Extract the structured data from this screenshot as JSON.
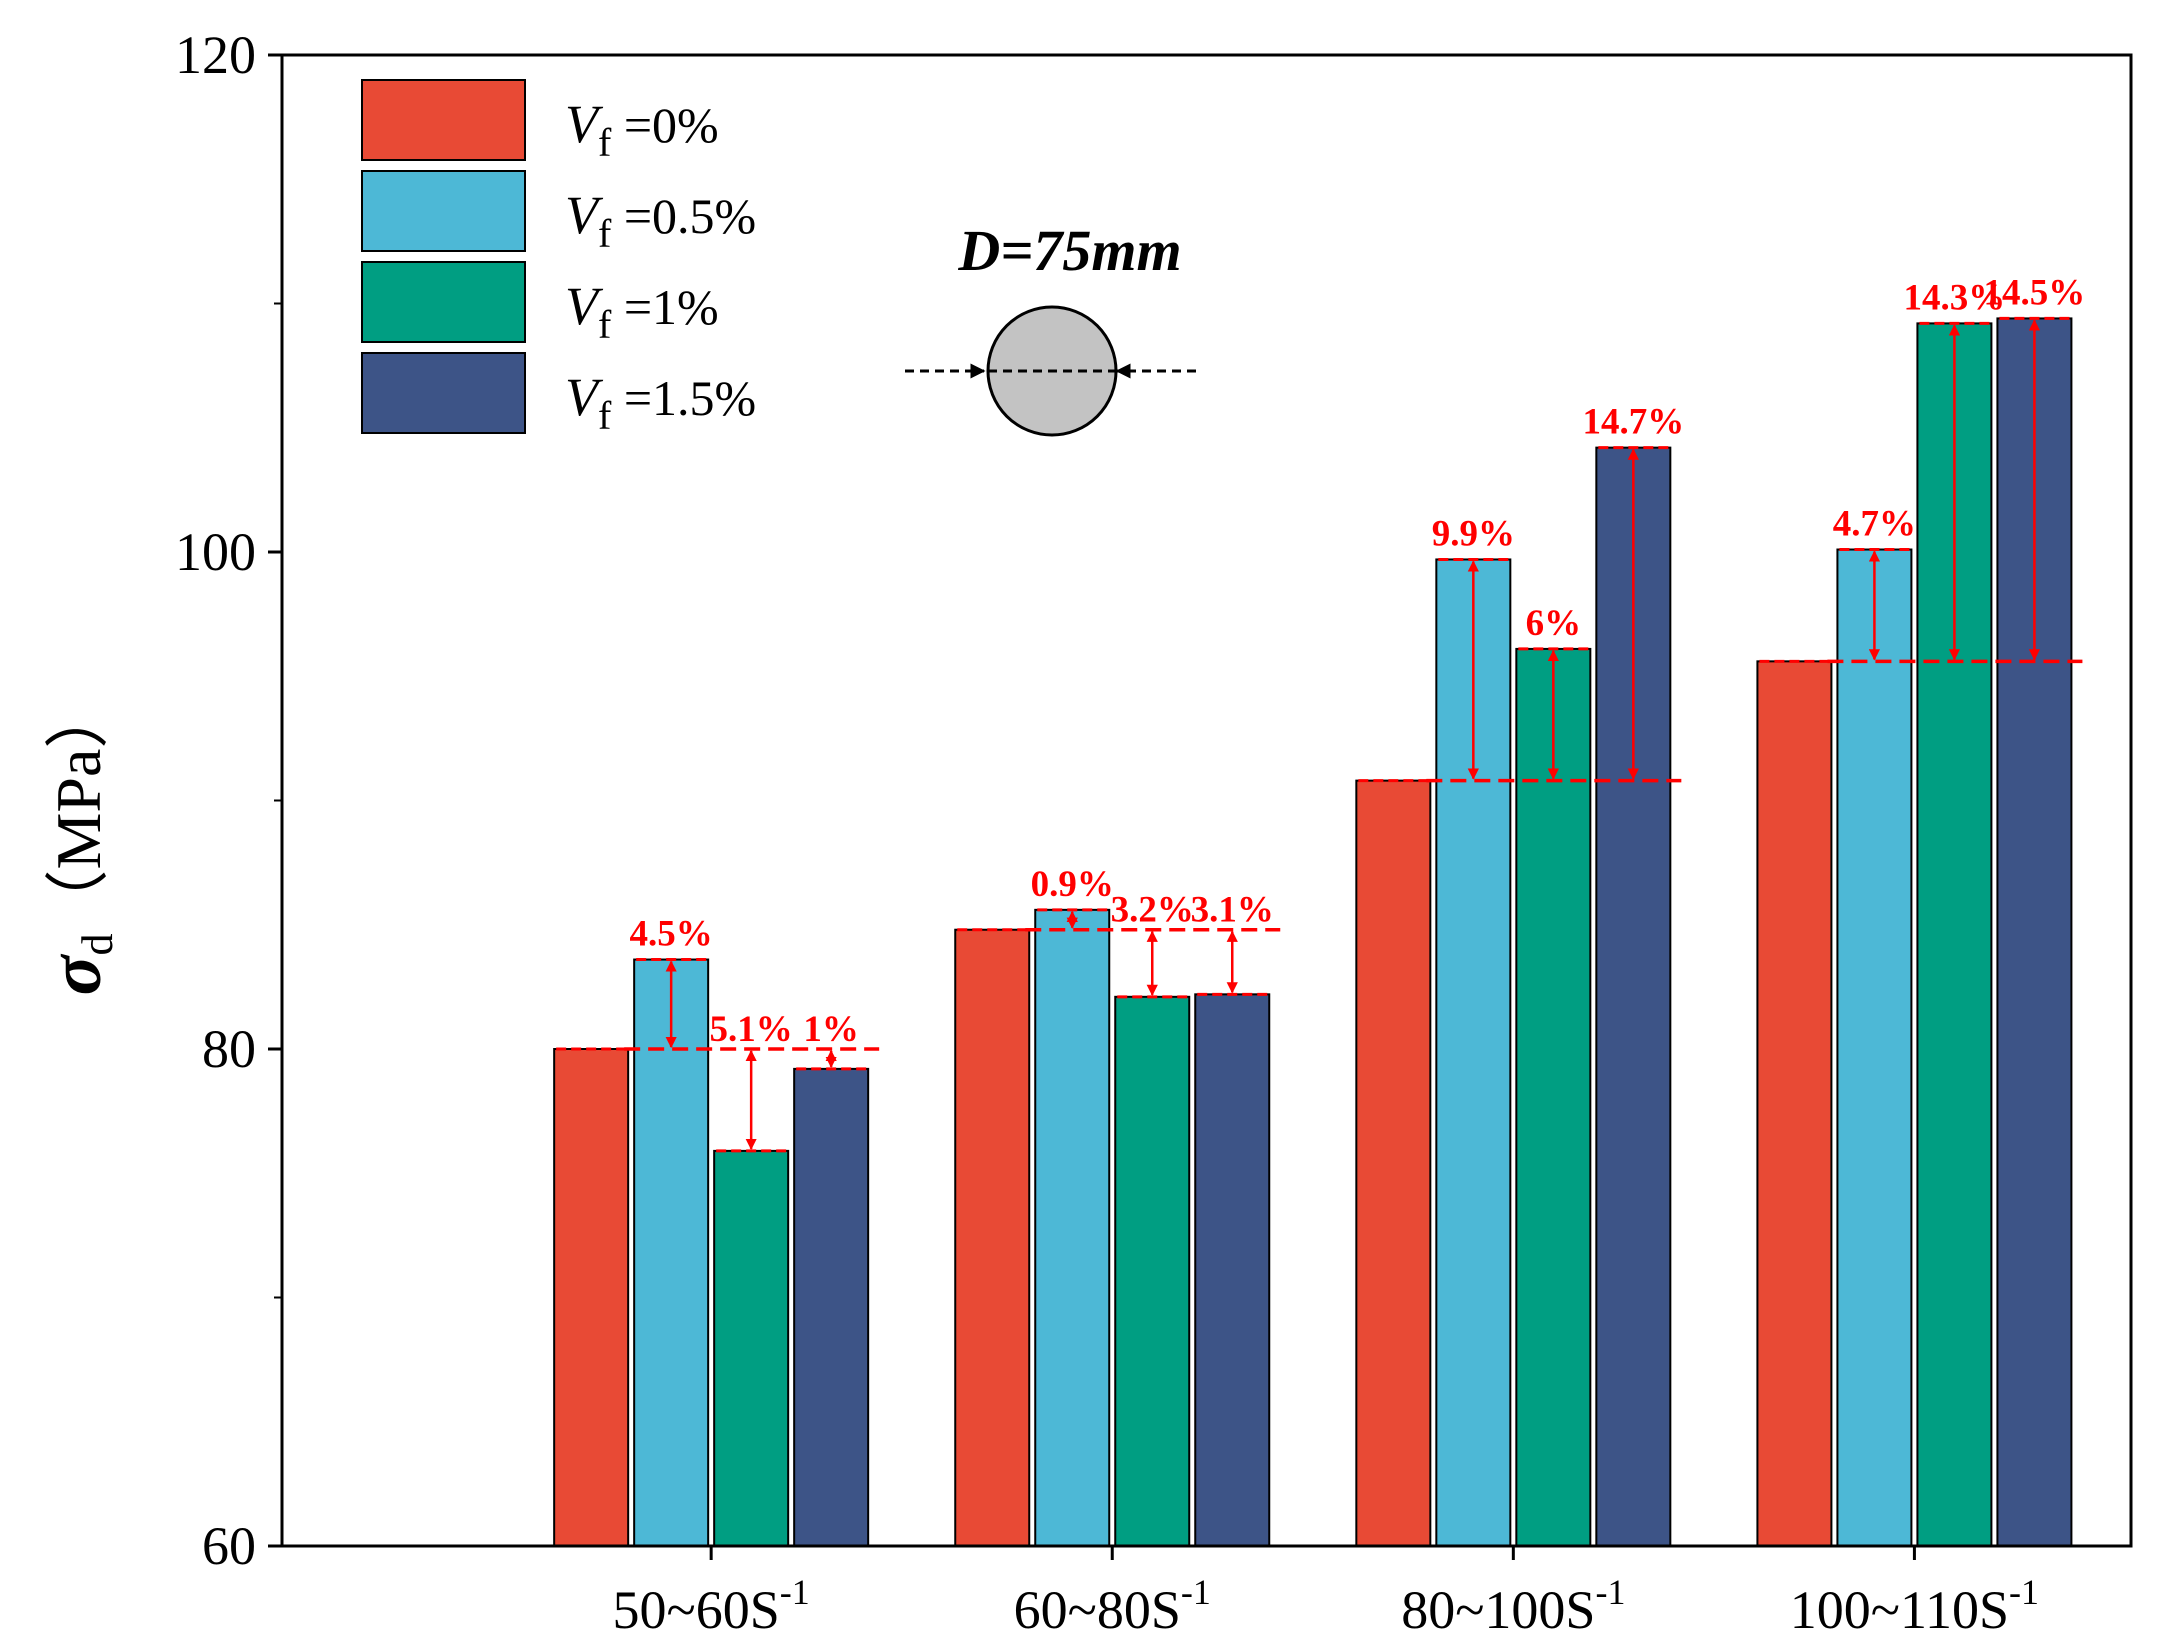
{
  "chart_data": {
    "type": "bar",
    "title": "",
    "xlabel": "",
    "ylabel": {
      "symbol": "σ",
      "subscript": "d",
      "unit": "（MPa）"
    },
    "ylim": [
      60,
      120
    ],
    "yticks": [
      "60",
      "80",
      "100",
      "120"
    ],
    "categories": [
      {
        "base": "50~60S",
        "sup": "-1"
      },
      {
        "base": "60~80S",
        "sup": "-1"
      },
      {
        "base": "80~100S",
        "sup": "-1"
      },
      {
        "base": "100~110S",
        "sup": "-1"
      }
    ],
    "series": [
      {
        "name": {
          "var": "V",
          "sub": "f",
          "rest": " =0%"
        },
        "color": "#e84a35",
        "values": [
          80.0,
          84.8,
          90.8,
          95.6
        ]
      },
      {
        "name": {
          "var": "V",
          "sub": "f",
          "rest": " =0.5%"
        },
        "color": "#4db8d6",
        "values": [
          83.6,
          85.6,
          99.7,
          100.1
        ]
      },
      {
        "name": {
          "var": "V",
          "sub": "f",
          "rest": " =1%"
        },
        "color": "#009e82",
        "values": [
          75.9,
          82.1,
          96.1,
          109.2
        ]
      },
      {
        "name": {
          "var": "V",
          "sub": "f",
          "rest": " =1.5%"
        },
        "color": "#3d5487",
        "values": [
          79.2,
          82.2,
          104.2,
          109.4
        ]
      }
    ],
    "increase_labels": [
      [
        "",
        "4.5%",
        "5.1%",
        "1%"
      ],
      [
        "",
        "0.9%",
        "3.2%",
        "3.1%"
      ],
      [
        "",
        "9.9%",
        "6%",
        "14.7%"
      ],
      [
        "",
        "4.7%",
        "14.3%",
        "14.5%"
      ]
    ],
    "annotation": {
      "text": "D=75mm"
    },
    "legend_position": "top-left",
    "grid": false
  }
}
